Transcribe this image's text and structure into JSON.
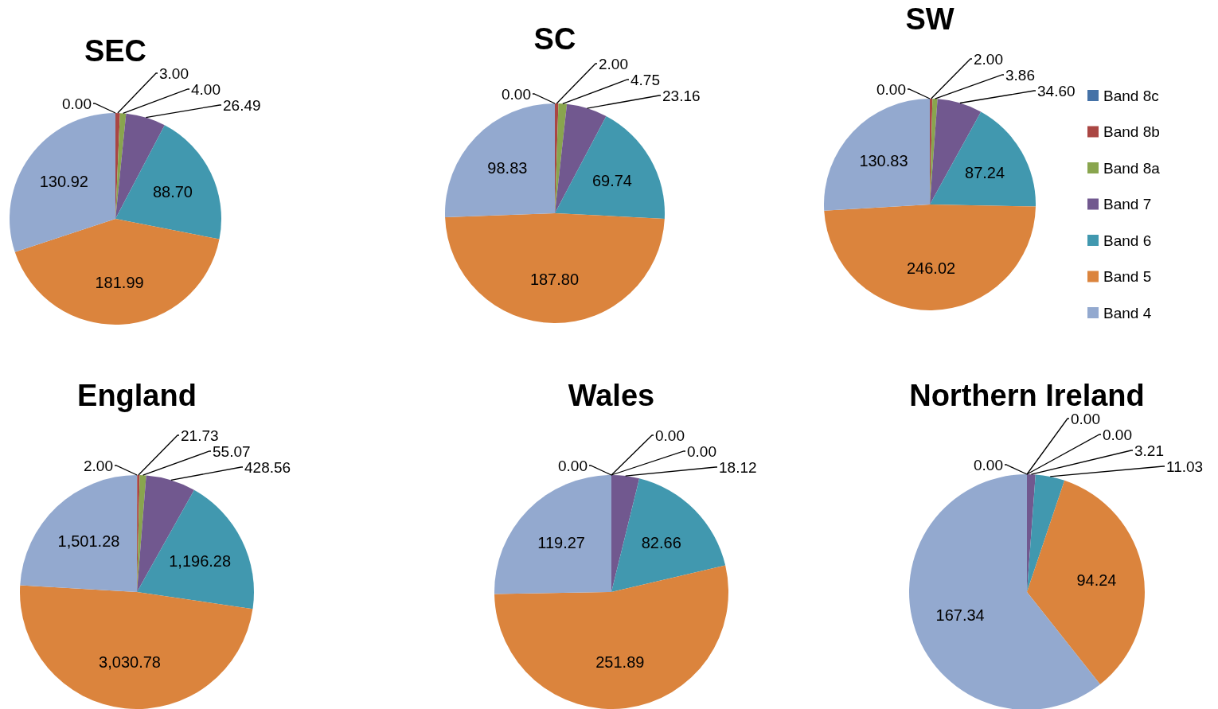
{
  "chart_data": [
    {
      "type": "pie",
      "title": "SEC",
      "categories": [
        null,
        null,
        null,
        null,
        null,
        null,
        null
      ],
      "values": [
        0.0,
        3.0,
        4.0,
        26.49,
        88.7,
        181.99,
        130.92
      ],
      "value_labels": [
        "0.00",
        "3.00",
        "4.00",
        "26.49",
        "88.70",
        "181.99",
        "130.92"
      ],
      "colors": [
        "#4572a7",
        "#aa4643",
        "#89a54e",
        "#71588f",
        "#4198af",
        "#db843d",
        "#93a9cf"
      ]
    },
    {
      "type": "pie",
      "title": "SC",
      "categories": [
        null,
        null,
        null,
        null,
        null,
        null,
        null
      ],
      "values": [
        0.0,
        2.0,
        4.75,
        23.16,
        69.74,
        187.8,
        98.83
      ],
      "value_labels": [
        "0.00",
        "2.00",
        "4.75",
        "23.16",
        "69.74",
        "187.80",
        "98.83"
      ],
      "colors": [
        "#4572a7",
        "#aa4643",
        "#89a54e",
        "#71588f",
        "#4198af",
        "#db843d",
        "#93a9cf"
      ]
    },
    {
      "type": "pie",
      "title": "SW",
      "categories": [
        "Band 8c",
        "Band 8b",
        "Band 8a",
        "Band 7",
        "Band 6",
        "Band 5",
        "Band 4"
      ],
      "values": [
        0.0,
        2.0,
        3.86,
        34.6,
        87.24,
        246.02,
        130.83
      ],
      "value_labels": [
        "0.00",
        "2.00",
        "3.86",
        "34.60",
        "87.24",
        "246.02",
        "130.83"
      ],
      "colors": [
        "#4572a7",
        "#aa4643",
        "#89a54e",
        "#71588f",
        "#4198af",
        "#db843d",
        "#93a9cf"
      ],
      "legend": "right"
    },
    {
      "type": "pie",
      "title": "England",
      "categories": [
        null,
        null,
        null,
        null,
        null,
        null,
        null
      ],
      "values": [
        2.0,
        21.73,
        55.07,
        428.56,
        1196.28,
        3030.78,
        1501.28
      ],
      "value_labels": [
        "2.00",
        "21.73",
        "55.07",
        "428.56",
        "1,196.28",
        "3,030.78",
        "1,501.28"
      ],
      "colors": [
        "#4572a7",
        "#aa4643",
        "#89a54e",
        "#71588f",
        "#4198af",
        "#db843d",
        "#93a9cf"
      ]
    },
    {
      "type": "pie",
      "title": "Wales",
      "categories": [
        null,
        null,
        null,
        null,
        null,
        null,
        null
      ],
      "values": [
        0.0,
        0.0,
        0.0,
        18.12,
        82.66,
        251.89,
        119.27
      ],
      "value_labels": [
        "0.00",
        "0.00",
        "0.00",
        "18.12",
        "82.66",
        "251.89",
        "119.27"
      ],
      "colors": [
        "#4572a7",
        "#aa4643",
        "#89a54e",
        "#71588f",
        "#4198af",
        "#db843d",
        "#93a9cf"
      ]
    },
    {
      "type": "pie",
      "title": "Northern Ireland",
      "categories": [
        null,
        null,
        null,
        null,
        null,
        null,
        null
      ],
      "values": [
        0.0,
        0.0,
        0.0,
        3.21,
        11.03,
        94.24,
        167.34
      ],
      "value_labels": [
        "0.00",
        "0.00",
        "0.00",
        "3.21",
        "11.03",
        "94.24",
        "167.34"
      ],
      "colors": [
        "#4572a7",
        "#aa4643",
        "#89a54e",
        "#71588f",
        "#4198af",
        "#db843d",
        "#93a9cf"
      ]
    }
  ]
}
